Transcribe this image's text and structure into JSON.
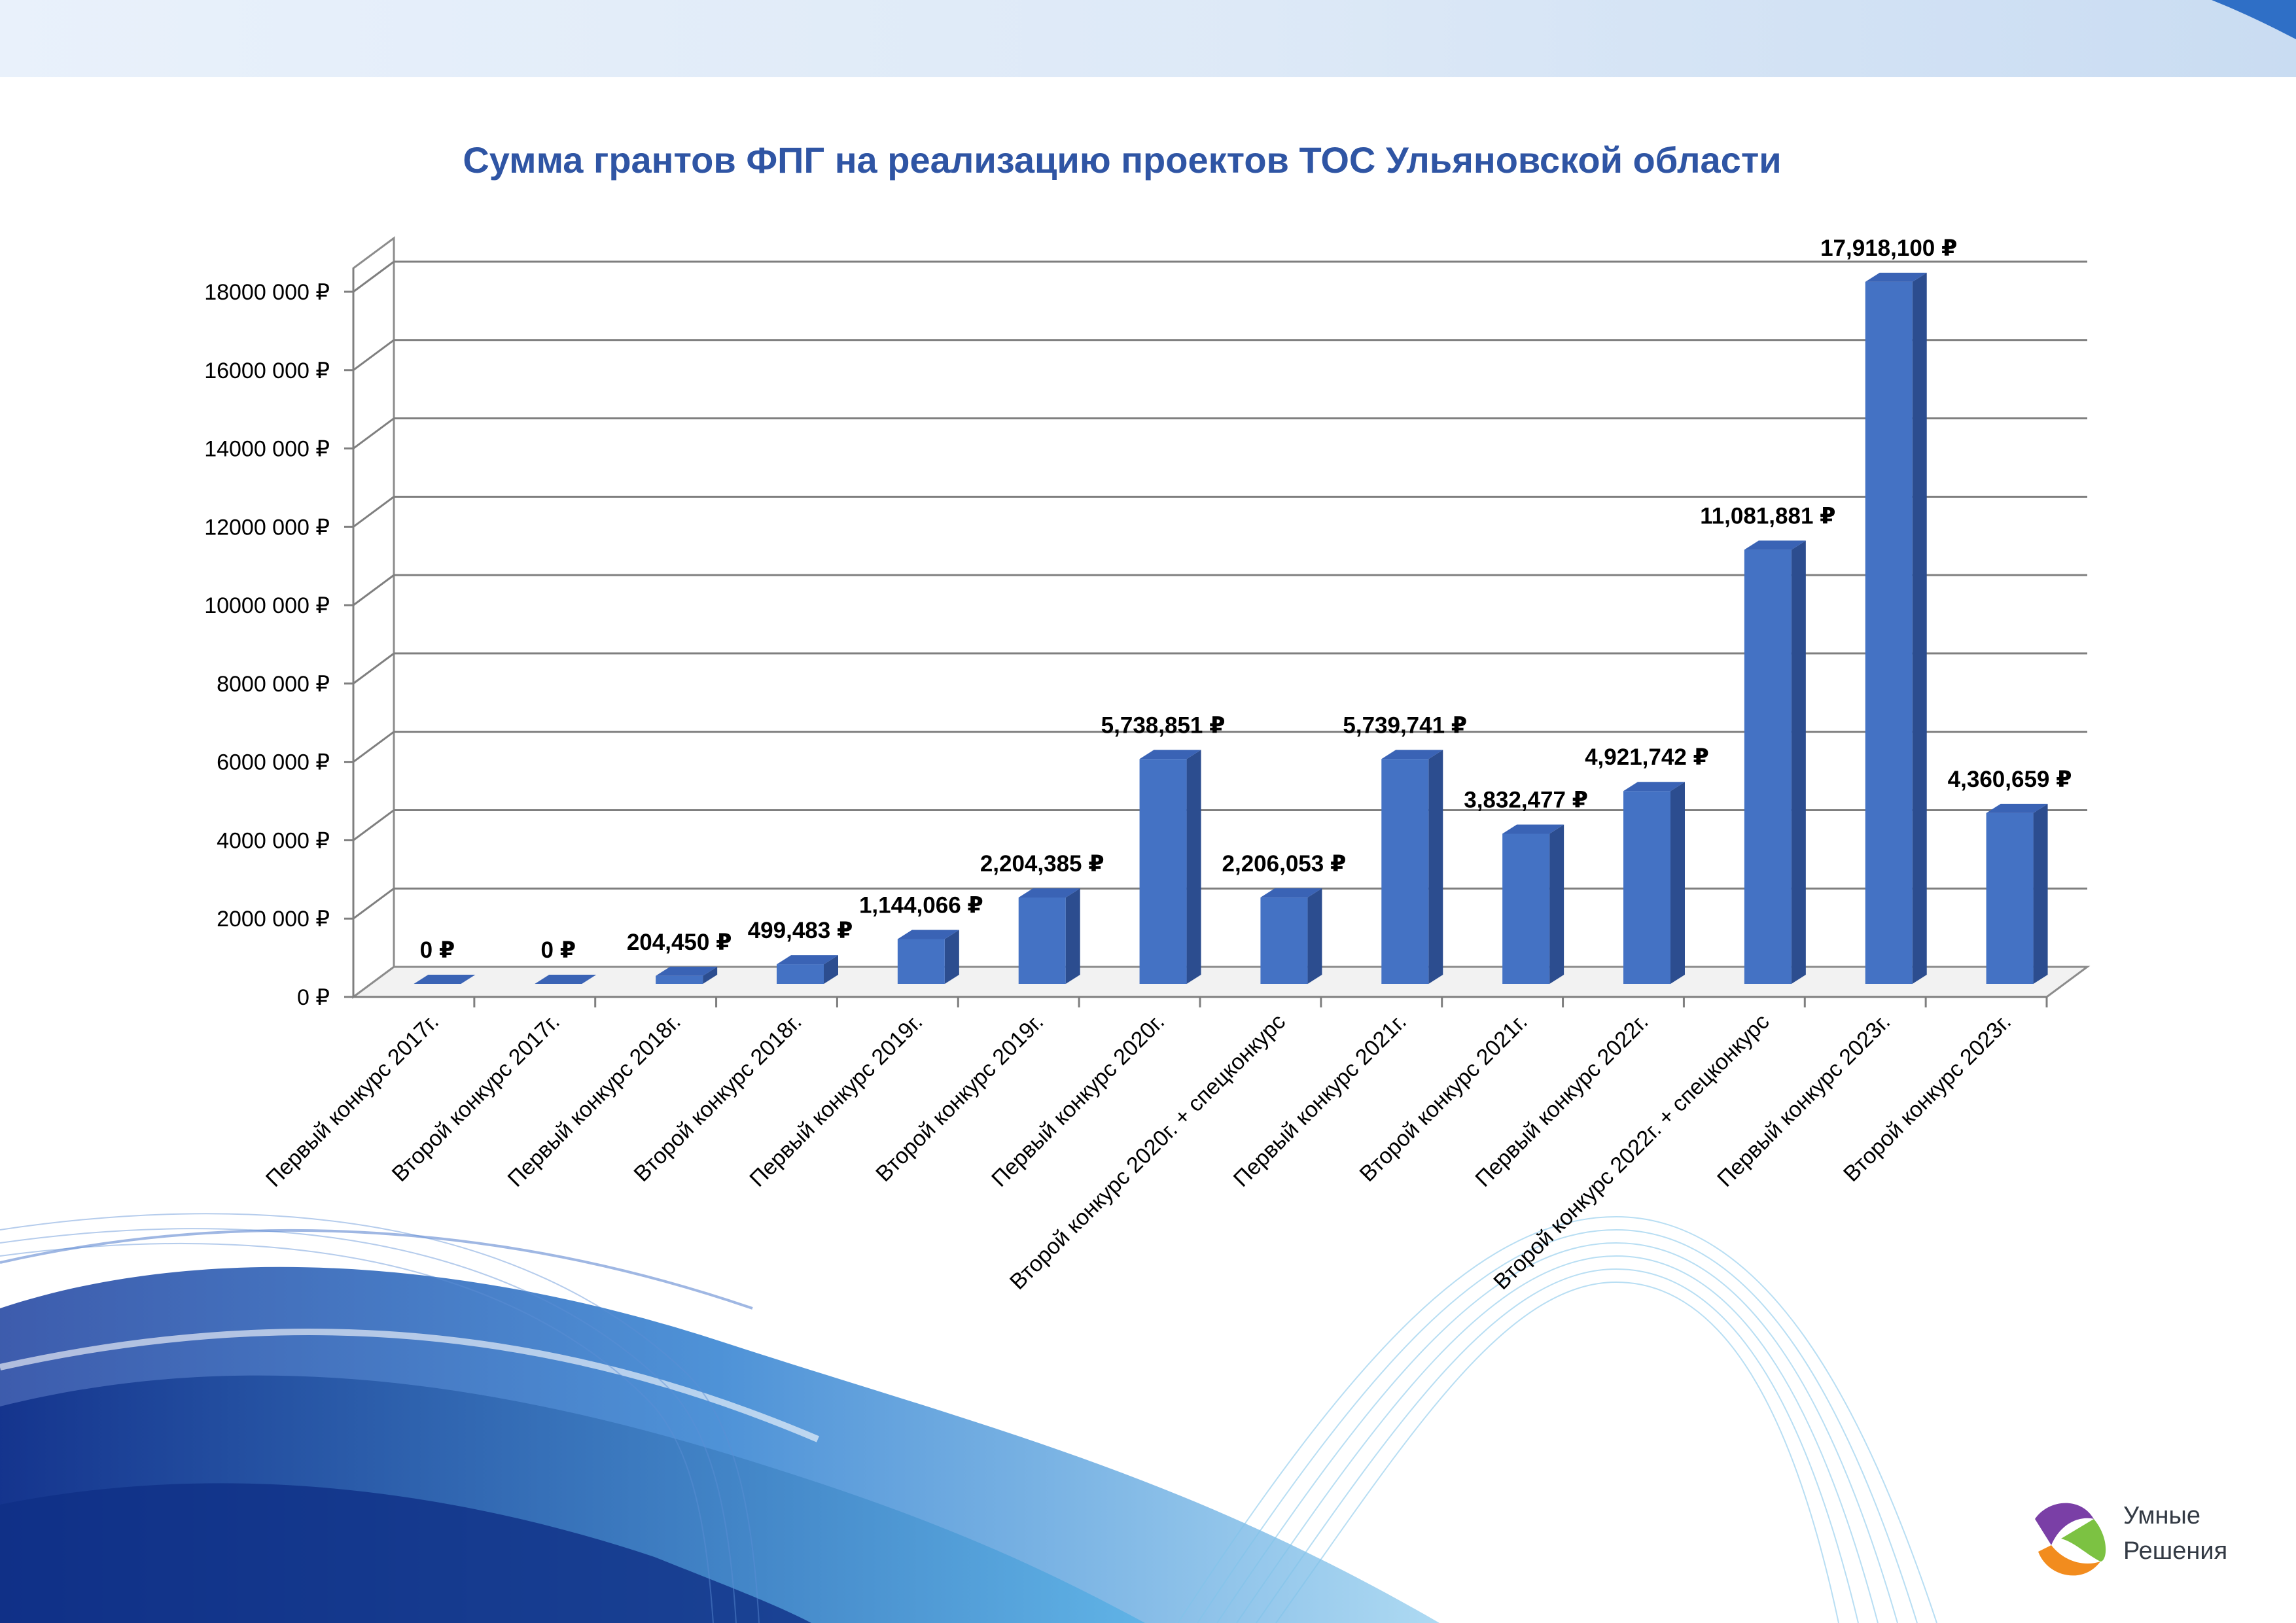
{
  "chart_data": {
    "type": "bar",
    "title": "Сумма грантов ФПГ на реализацию проектов ТОС Ульяновской области",
    "xlabel": "",
    "ylabel": "",
    "ylim": [
      0,
      18000000
    ],
    "y_ticks": [
      {
        "value": 0,
        "label": "0 ₽"
      },
      {
        "value": 2000000,
        "label": "2000 000 ₽"
      },
      {
        "value": 4000000,
        "label": "4000 000 ₽"
      },
      {
        "value": 6000000,
        "label": "6000 000 ₽"
      },
      {
        "value": 8000000,
        "label": "8000 000 ₽"
      },
      {
        "value": 10000000,
        "label": "10000 000 ₽"
      },
      {
        "value": 12000000,
        "label": "12000 000 ₽"
      },
      {
        "value": 14000000,
        "label": "14000 000 ₽"
      },
      {
        "value": 16000000,
        "label": "16000 000 ₽"
      },
      {
        "value": 18000000,
        "label": "18000 000 ₽"
      }
    ],
    "grid": true,
    "style": "3d-columns",
    "color": "#4472c4",
    "categories": [
      "Первый конкурс 2017г.",
      "Второй конкурс 2017г.",
      "Первый конкурс 2018г.",
      "Второй конкурс 2018г.",
      "Первый конкурс 2019г.",
      "Второй конкурс 2019г.",
      "Первый конкурс 2020г.",
      "Второй конкурс 2020г. + спецконкурс",
      "Первый конкурс 2021г.",
      "Второй конкурс 2021г.",
      "Первый конкурс 2022г.",
      "Второй конкурс 2022г. + спецконкурс",
      "Первый конкурс 2023г.",
      "Второй конкурс 2023г."
    ],
    "values": [
      0,
      0,
      204450,
      499483,
      1144066,
      2204385,
      5738851,
      2206053,
      5739741,
      3832477,
      4921742,
      11081881,
      17918100,
      4360659
    ],
    "data_labels": [
      "0 ₽",
      "0 ₽",
      "204,450 ₽",
      "499,483 ₽",
      "1,144,066 ₽",
      "2,204,385 ₽",
      "5,738,851 ₽",
      "2,206,053 ₽",
      "5,739,741 ₽",
      "3,832,477 ₽",
      "4,921,742 ₽",
      "11,081,881 ₽",
      "17,918,100 ₽",
      "4,360,659 ₽"
    ]
  },
  "logo": {
    "line1": "Умные",
    "line2": "Решения",
    "colors": [
      "#7a3fa6",
      "#f28c1e",
      "#7cc242"
    ]
  }
}
